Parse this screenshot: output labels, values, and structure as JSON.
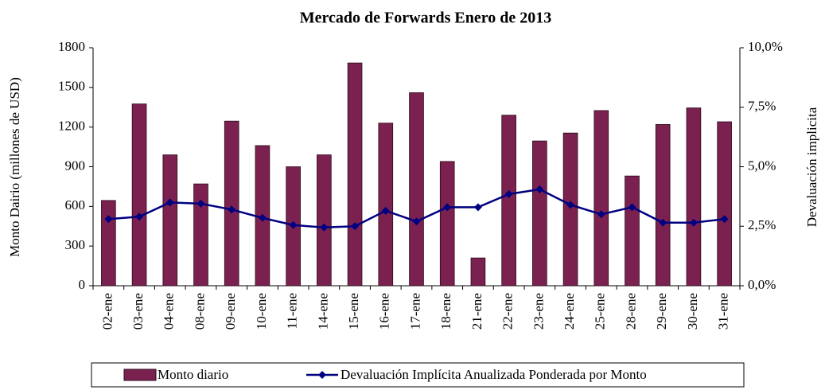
{
  "chart_data": {
    "type": "bar",
    "title": "Mercado de Forwards Enero de 2013",
    "y_label": "Monto Dairio (millones de USD)",
    "y2_label": "Devaluación implicita",
    "categories": [
      "02-ene",
      "03-ene",
      "04-ene",
      "08-ene",
      "09-ene",
      "10-ene",
      "11-ene",
      "14-ene",
      "15-ene",
      "16-ene",
      "17-ene",
      "18-ene",
      "21-ene",
      "22-ene",
      "23-ene",
      "24-ene",
      "25-ene",
      "28-ene",
      "29-ene",
      "30-ene",
      "31-ene"
    ],
    "series": [
      {
        "name": "Monto diario",
        "color": "#7b2150",
        "type": "bar",
        "values": [
          645,
          1375,
          990,
          770,
          1245,
          1060,
          900,
          990,
          1685,
          1230,
          1460,
          940,
          210,
          1290,
          1095,
          1155,
          1325,
          830,
          1220,
          1345,
          1240
        ]
      },
      {
        "name": "Devaluación Implícita Anualizada Ponderada por Monto",
        "color": "#000080",
        "type": "line",
        "axis": "y2",
        "values": [
          2.8,
          2.9,
          3.5,
          3.45,
          3.2,
          2.85,
          2.55,
          2.45,
          2.5,
          3.15,
          2.7,
          3.3,
          3.3,
          3.85,
          4.05,
          3.4,
          3.0,
          3.3,
          2.65,
          2.65,
          2.8
        ]
      }
    ],
    "ylim": [
      0,
      1800
    ],
    "yticks": [
      0,
      300,
      600,
      900,
      1200,
      1500,
      1800
    ],
    "y2lim": [
      0,
      10
    ],
    "y2ticks": [
      {
        "value": 0,
        "label": "0,0%"
      },
      {
        "value": 2.5,
        "label": "2,5%"
      },
      {
        "value": 5,
        "label": "5,0%"
      },
      {
        "value": 7.5,
        "label": "7,5%"
      },
      {
        "value": 10,
        "label": "10,0%"
      }
    ],
    "legend": "bottom"
  }
}
